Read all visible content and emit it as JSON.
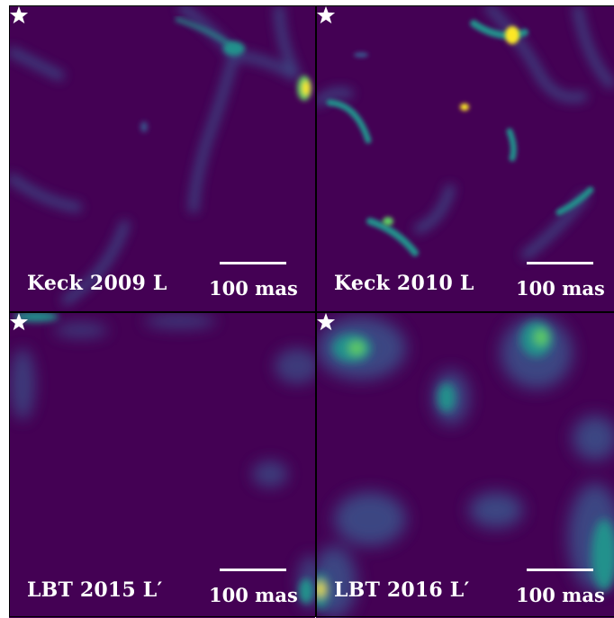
{
  "panels": [
    {
      "id": "keck-2009",
      "label": "Keck 2009 L",
      "scale": "100 mas"
    },
    {
      "id": "keck-2010",
      "label": "Keck 2010 L",
      "scale": "100 mas"
    },
    {
      "id": "lbt-2015",
      "label": "LBT 2015 L′",
      "scale": "100 mas"
    },
    {
      "id": "lbt-2016",
      "label": "LBT 2016 L′",
      "scale": "100 mas"
    }
  ],
  "colors": {
    "background": "#440154",
    "low": "#3b528b",
    "mid": "#21918c",
    "high": "#5ec962",
    "peak": "#fde725",
    "star": "#ffffff"
  },
  "icons": {
    "star": "white-star-icon"
  }
}
